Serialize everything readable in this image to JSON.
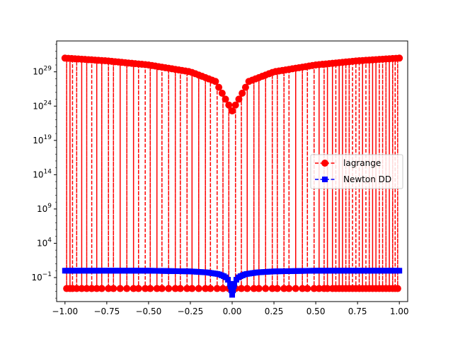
{
  "chart_data": {
    "type": "line",
    "yscale": "log",
    "xlim": [
      -1.05,
      1.05
    ],
    "ylim_log10": [
      -4.5,
      33.5
    ],
    "xticks": [
      {
        "value": -1.0,
        "label": "−1.00"
      },
      {
        "value": -0.75,
        "label": "−0.75"
      },
      {
        "value": -0.5,
        "label": "−0.50"
      },
      {
        "value": -0.25,
        "label": "−0.25"
      },
      {
        "value": 0.0,
        "label": "0.00"
      },
      {
        "value": 0.25,
        "label": "0.25"
      },
      {
        "value": 0.5,
        "label": "0.50"
      },
      {
        "value": 0.75,
        "label": "0.75"
      },
      {
        "value": 1.0,
        "label": "1.00"
      }
    ],
    "yticks": [
      {
        "exp": -1,
        "base": "10",
        "sup": "−1"
      },
      {
        "exp": 4,
        "base": "10",
        "sup": "4"
      },
      {
        "exp": 9,
        "base": "10",
        "sup": "9"
      },
      {
        "exp": 14,
        "base": "10",
        "sup": "14"
      },
      {
        "exp": 19,
        "base": "10",
        "sup": "19"
      },
      {
        "exp": 24,
        "base": "10",
        "sup": "24"
      },
      {
        "exp": 29,
        "base": "10",
        "sup": "29"
      }
    ],
    "series": [
      {
        "name": "lagrange",
        "color": "#ff0000",
        "marker": "circle",
        "linestyle": "dashed",
        "envelope_top_log10": [
          [
            -1.0,
            31.0
          ],
          [
            -0.75,
            30.6
          ],
          [
            -0.5,
            30.0
          ],
          [
            -0.25,
            29.0
          ],
          [
            -0.1,
            27.6
          ],
          [
            0.0,
            23.3
          ],
          [
            0.1,
            27.6
          ],
          [
            0.25,
            29.0
          ],
          [
            0.5,
            30.0
          ],
          [
            0.75,
            30.6
          ],
          [
            1.0,
            31.0
          ]
        ],
        "lower_level_log10": -2.6,
        "drop_x": [
          -0.99,
          -0.97,
          -0.955,
          -0.93,
          -0.9,
          -0.87,
          -0.84,
          -0.81,
          -0.78,
          -0.74,
          -0.71,
          -0.67,
          -0.63,
          -0.59,
          -0.56,
          -0.52,
          -0.49,
          -0.45,
          -0.42,
          -0.38,
          -0.34,
          -0.31,
          -0.27,
          -0.24,
          -0.2,
          -0.16,
          -0.13,
          -0.09,
          -0.055,
          -0.02,
          0.02,
          0.055,
          0.09,
          0.13,
          0.16,
          0.2,
          0.24,
          0.27,
          0.31,
          0.34,
          0.38,
          0.42,
          0.45,
          0.49,
          0.52,
          0.55,
          0.57,
          0.6,
          0.62,
          0.64,
          0.66,
          0.68,
          0.7,
          0.72,
          0.74,
          0.76,
          0.78,
          0.8,
          0.82,
          0.84,
          0.86,
          0.88,
          0.9,
          0.92,
          0.94,
          0.96,
          0.975,
          0.99
        ]
      },
      {
        "name": "Newton DD",
        "color": "#0000ff",
        "marker": "square",
        "linestyle": "dashed",
        "points_log10": [
          [
            -1.0,
            0.0
          ],
          [
            -0.5,
            0.0
          ],
          [
            -0.25,
            -0.1
          ],
          [
            -0.15,
            -0.25
          ],
          [
            -0.08,
            -0.5
          ],
          [
            -0.04,
            -0.9
          ],
          [
            -0.015,
            -1.6
          ],
          [
            0.0,
            -3.5
          ],
          [
            0.015,
            -1.6
          ],
          [
            0.04,
            -0.9
          ],
          [
            0.08,
            -0.5
          ],
          [
            0.15,
            -0.25
          ],
          [
            0.25,
            -0.1
          ],
          [
            0.5,
            0.0
          ],
          [
            1.0,
            0.0
          ]
        ]
      }
    ],
    "legend": {
      "placement": "center-right",
      "entries": [
        "lagrange",
        "Newton DD"
      ]
    }
  }
}
